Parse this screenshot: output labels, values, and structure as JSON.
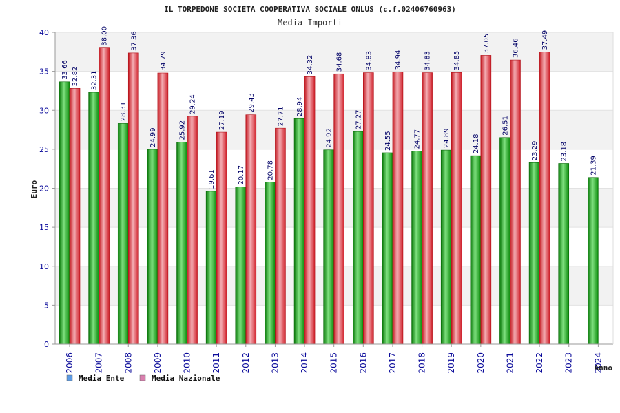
{
  "chart_data": {
    "type": "bar",
    "title": "IL TORPEDONE SOCIETA COOPERATIVA SOCIALE ONLUS (c.f.02406760963)",
    "subtitle": "Media Importi",
    "xlabel": "Anno",
    "ylabel": "Euro",
    "ylim": [
      0,
      40
    ],
    "yticks": [
      0,
      5,
      10,
      15,
      20,
      25,
      30,
      35,
      40
    ],
    "grid": true,
    "legend": "bottom-left",
    "categories": [
      "2006",
      "2007",
      "2008",
      "2009",
      "2010",
      "2011",
      "2012",
      "2013",
      "2014",
      "2015",
      "2016",
      "2017",
      "2018",
      "2019",
      "2020",
      "2021",
      "2022",
      "2023",
      "2024"
    ],
    "series": [
      {
        "name": "Media Ente",
        "color": "#1bb51b",
        "legend_color": "#5b9be6",
        "values": [
          33.66,
          32.31,
          28.31,
          24.99,
          25.92,
          19.61,
          20.17,
          20.78,
          28.94,
          24.92,
          27.27,
          24.55,
          24.77,
          24.89,
          24.18,
          26.51,
          23.29,
          23.18,
          21.39
        ],
        "labels": [
          "33.66",
          "32.31",
          "28.31",
          "24.99",
          "25.92",
          "19.61",
          "20.17",
          "20.78",
          "28.94",
          "24.92",
          "27.27",
          "24.55",
          "24.77",
          "24.89",
          "24.18",
          "26.51",
          "23.29",
          "23.18",
          "21.39"
        ]
      },
      {
        "name": "Media Nazionale",
        "color": "#e8303a",
        "legend_color": "#d97fae",
        "values": [
          32.82,
          38.0,
          37.36,
          34.79,
          29.24,
          27.19,
          29.43,
          27.71,
          34.32,
          34.68,
          34.83,
          34.94,
          34.83,
          34.85,
          37.05,
          36.46,
          37.49,
          null,
          null
        ],
        "labels": [
          "32.82",
          "38.00",
          "37.36",
          "34.79",
          "29.24",
          "27.19",
          "29.43",
          "27.71",
          "34.32",
          "34.68",
          "34.83",
          "34.94",
          "34.83",
          "34.85",
          "37.05",
          "36.46",
          "37.49",
          null,
          null
        ]
      }
    ]
  }
}
